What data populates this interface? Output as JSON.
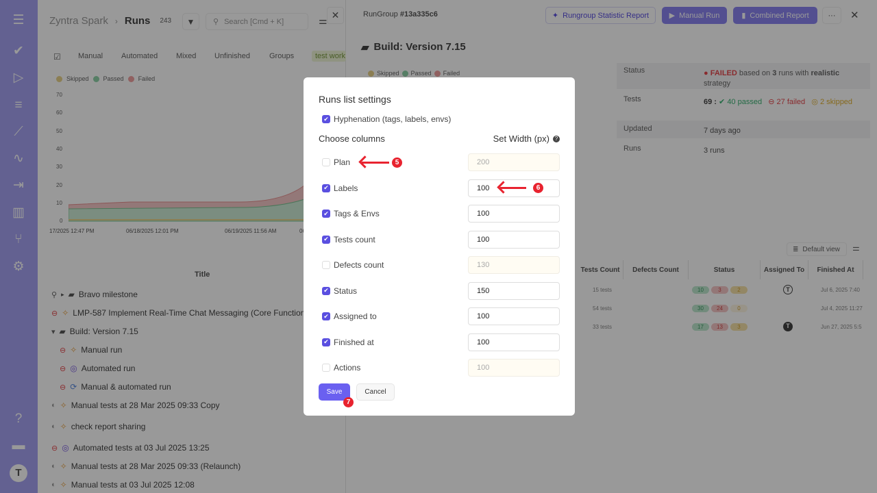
{
  "sidebar": {
    "items": [
      "menu-icon",
      "check-icon",
      "play-icon",
      "list-check-icon",
      "steps-icon",
      "pulse-icon",
      "import-icon",
      "analytics-icon",
      "branch-icon",
      "gear-icon",
      "help-icon",
      "folder-icon",
      "avatar"
    ],
    "color": "#a6a2f2"
  },
  "left": {
    "project": "Zyntra Spark",
    "separator": "›",
    "page": "Runs",
    "count": "243",
    "search_placeholder": "Search [Cmd + K]",
    "tabs": [
      "Manual",
      "Automated",
      "Mixed",
      "Unfinished",
      "Groups",
      "test work"
    ],
    "legend": [
      "Skipped",
      "Passed",
      "Failed"
    ],
    "chart": {
      "y_ticks": [
        "70",
        "60",
        "50",
        "40",
        "30",
        "20",
        "10",
        "0"
      ],
      "x_ticks": [
        "17/2025 12:47 PM",
        "06/18/2025 12:01 PM",
        "06/19/2025 11:56 AM",
        "06"
      ]
    },
    "column_title": "Title",
    "rows": [
      {
        "title": "Bravo milestone",
        "kind": "group"
      },
      {
        "title": "LMP-587 Implement Real-Time Chat Messaging (Core Functiona",
        "kind": "manual"
      },
      {
        "title": "Build: Version 7.15",
        "kind": "group"
      },
      {
        "title": "Manual run",
        "kind": "manual"
      },
      {
        "title": "Automated run",
        "kind": "automated"
      },
      {
        "title": "Manual & automated run",
        "kind": "mixed"
      },
      {
        "title": "Manual tests at 28 Mar 2025 09:33 Copy",
        "kind": "manual"
      },
      {
        "title": "check report sharing",
        "kind": "manual"
      },
      {
        "title": "Automated tests at 03 Jul 2025 13:25",
        "kind": "automated"
      },
      {
        "title": "Manual tests at 28 Mar 2025 09:33 (Relaunch)",
        "kind": "manual"
      },
      {
        "title": "Manual tests at 03 Jul 2025 12:08",
        "kind": "manual"
      }
    ]
  },
  "right": {
    "rungroup_label": "RunGroup",
    "rungroup_id": "#13a335c6",
    "buttons": {
      "statistic": "Rungroup Statistic Report",
      "manual_run": "Manual Run",
      "combined": "Combined Report",
      "more": "···"
    },
    "title": "Build: Version 7.15",
    "legend": [
      "Skipped",
      "Passed",
      "Failed"
    ],
    "info": {
      "status_label": "Status",
      "status_value": "FAILED",
      "status_rest1": "based on",
      "status_runs": "3",
      "status_rest2": "runs with",
      "status_strategy": "realistic",
      "status_rest3": "strategy",
      "tests_label": "Tests",
      "tests_total": "69 :",
      "passed": "40 passed",
      "failed": "27 failed",
      "skipped": "2 skipped",
      "updated_label": "Updated",
      "updated_value": "7 days ago",
      "runs_label": "Runs",
      "runs_value": "3 runs"
    },
    "default_view": "Default view",
    "table": {
      "headers": [
        "Tests Count",
        "Defects Count",
        "Status",
        "Assigned To",
        "Finished At"
      ],
      "rows": [
        {
          "tests": "15 tests",
          "passed": "10",
          "failed": "3",
          "skipped": "2",
          "finished": "Jul 6, 2025 7:40"
        },
        {
          "tests": "54 tests",
          "passed": "30",
          "failed": "24",
          "skipped": "0",
          "finished": "Jul 4, 2025 11:27"
        },
        {
          "tests": "33 tests",
          "passed": "17",
          "failed": "13",
          "skipped": "3",
          "finished": "Jun 27, 2025 5:5"
        }
      ]
    }
  },
  "modal": {
    "title": "Runs list settings",
    "hyphenation": {
      "label": "Hyphenation (tags, labels, envs)",
      "checked": true
    },
    "choose_columns": "Choose columns",
    "set_width": "Set Width (px)",
    "columns": [
      {
        "label": "Plan",
        "checked": false,
        "width": "200"
      },
      {
        "label": "Labels",
        "checked": true,
        "width": "100"
      },
      {
        "label": "Tags & Envs",
        "checked": true,
        "width": "100"
      },
      {
        "label": "Tests count",
        "checked": true,
        "width": "100"
      },
      {
        "label": "Defects count",
        "checked": false,
        "width": "130"
      },
      {
        "label": "Status",
        "checked": true,
        "width": "150"
      },
      {
        "label": "Assigned to",
        "checked": true,
        "width": "100"
      },
      {
        "label": "Finished at",
        "checked": true,
        "width": "100"
      },
      {
        "label": "Actions",
        "checked": false,
        "width": "100"
      }
    ],
    "save": "Save",
    "cancel": "Cancel"
  },
  "annotations": [
    "5",
    "6",
    "7"
  ],
  "colors": {
    "accent": "#5a4fe0",
    "annotation": "#e8232f",
    "passed": "#3bb273",
    "failed": "#e5484d",
    "skipped": "#e0b030"
  }
}
